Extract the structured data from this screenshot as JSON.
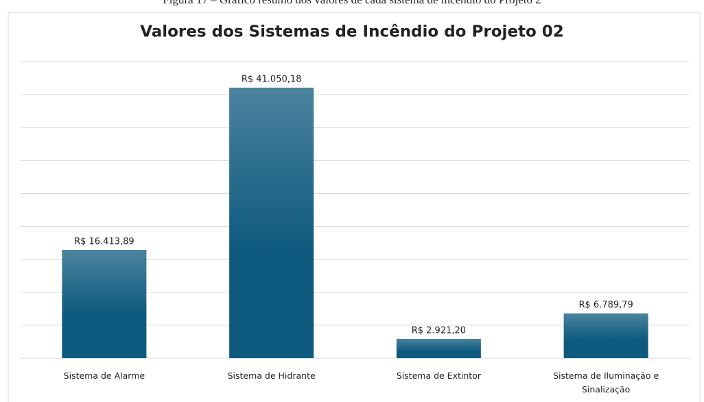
{
  "caption": "Figura 17 – Gráfico resumo dos valores de cada sistema de incêndio do Projeto 2",
  "chart_data": {
    "type": "bar",
    "title": "Valores dos Sistemas de Incêndio do Projeto 02",
    "categories": [
      "Sistema de Alarme",
      "Sistema de Hidrante",
      "Sistema de Extintor",
      "Sistema de Iluminação e Sinalização"
    ],
    "values": [
      16413.89,
      41050.18,
      2921.2,
      6789.79
    ],
    "value_labels": [
      "R$ 16.413,89",
      "R$ 41.050,18",
      "R$ 2.921,20",
      "R$ 6.789,79"
    ],
    "color": "#0e5a7e",
    "ylim": [
      0,
      45000
    ],
    "yticks": [
      0,
      5000,
      10000,
      15000,
      20000,
      25000,
      30000,
      35000,
      40000,
      45000
    ],
    "grid": true
  }
}
